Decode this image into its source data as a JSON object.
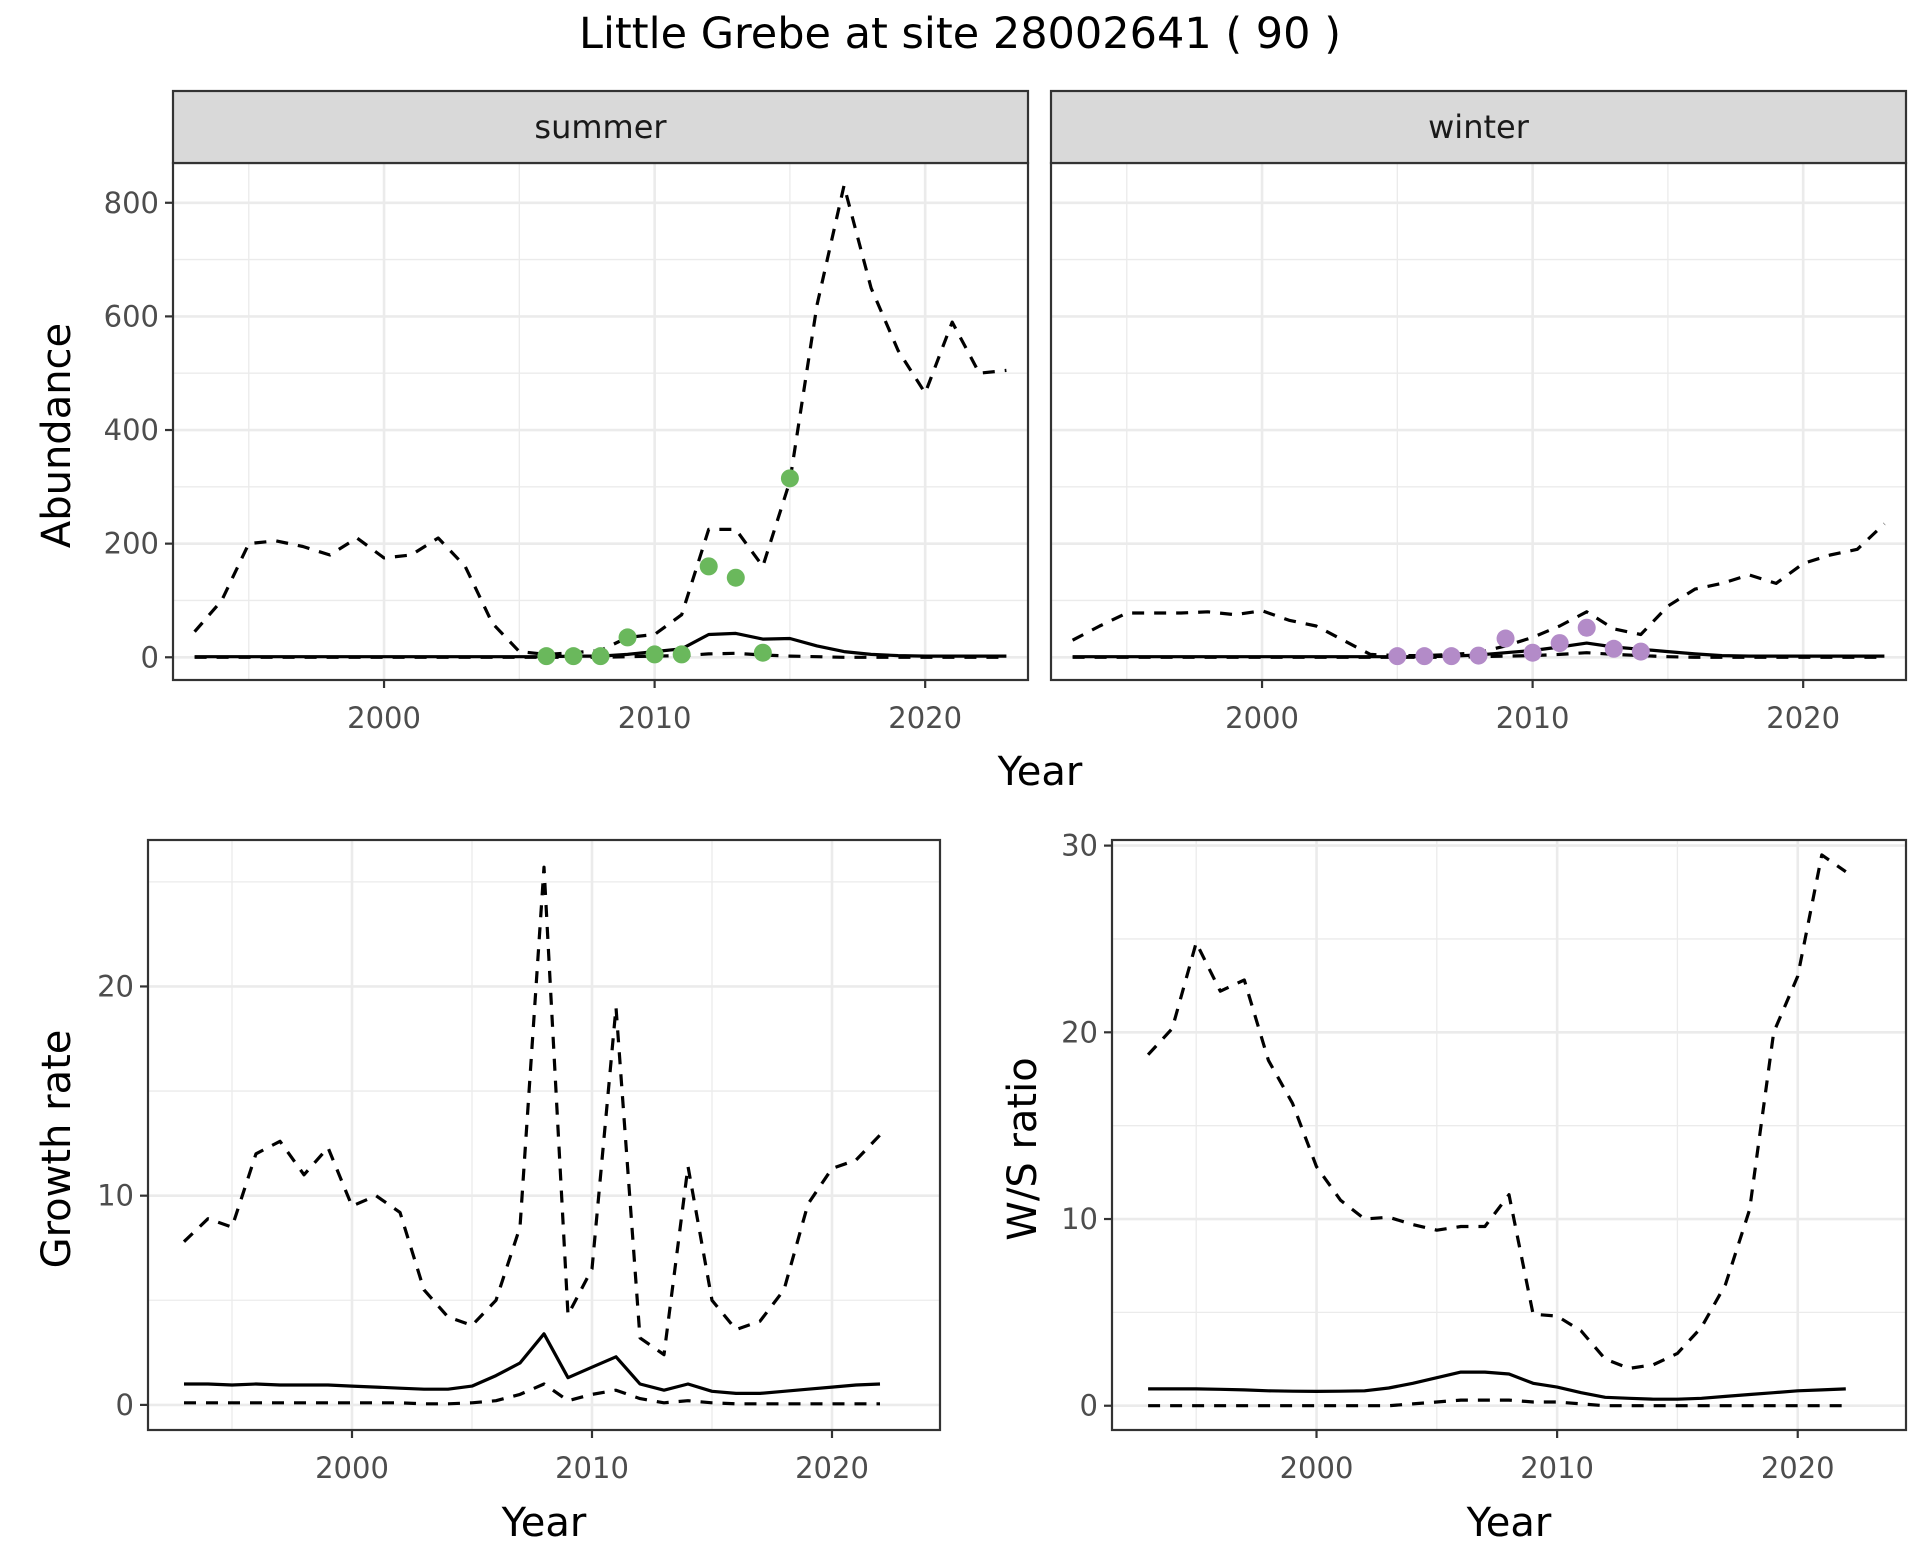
{
  "figure": {
    "title": "Little Grebe at site 28002641 ( 90 )"
  },
  "chart_data": [
    {
      "type": "line",
      "panel": "summer",
      "facet_label": "summer",
      "xlabel": "Year",
      "ylabel": "Abundance",
      "xlim": [
        1992.2,
        2023.8
      ],
      "ylim": [
        -40,
        870
      ],
      "xticks": [
        2000,
        2010,
        2020
      ],
      "yticks": [
        0,
        200,
        400,
        600,
        800
      ],
      "grid": true,
      "series": [
        {
          "style": "solid",
          "color": "#000000",
          "x": [
            1993,
            1994,
            1995,
            1996,
            1997,
            1998,
            1999,
            2000,
            2001,
            2002,
            2003,
            2004,
            2005,
            2006,
            2007,
            2008,
            2009,
            2010,
            2011,
            2012,
            2013,
            2014,
            2015,
            2016,
            2017,
            2018,
            2019,
            2020,
            2021,
            2022,
            2023
          ],
          "y": [
            1,
            1,
            1,
            1,
            1,
            1,
            1,
            1,
            1,
            1,
            1,
            1,
            1,
            1,
            2,
            2,
            5,
            10,
            15,
            40,
            42,
            32,
            33,
            20,
            10,
            5,
            3,
            2,
            2,
            2,
            2
          ]
        },
        {
          "style": "dashed",
          "color": "#000000",
          "x": [
            1993,
            1994,
            1995,
            1996,
            1997,
            1998,
            1999,
            2000,
            2001,
            2002,
            2003,
            2004,
            2005,
            2006,
            2007,
            2008,
            2009,
            2010,
            2011,
            2012,
            2013,
            2014,
            2015,
            2016,
            2017,
            2018,
            2019,
            2020,
            2021,
            2022,
            2023
          ],
          "y": [
            45,
            100,
            200,
            205,
            195,
            180,
            210,
            175,
            180,
            210,
            160,
            60,
            10,
            5,
            8,
            12,
            35,
            40,
            75,
            225,
            225,
            160,
            310,
            620,
            830,
            650,
            540,
            465,
            590,
            500,
            505
          ]
        },
        {
          "style": "dashed",
          "color": "#000000",
          "x": [
            1993,
            1994,
            1995,
            1996,
            1997,
            1998,
            1999,
            2000,
            2001,
            2002,
            2003,
            2004,
            2005,
            2006,
            2007,
            2008,
            2009,
            2010,
            2011,
            2012,
            2013,
            2014,
            2015,
            2016,
            2017,
            2018,
            2019,
            2020,
            2021,
            2022,
            2023
          ],
          "y": [
            0,
            0,
            0,
            0,
            0,
            0,
            0,
            0,
            0,
            0,
            0,
            0,
            0,
            0,
            0,
            0,
            1,
            2,
            3,
            6,
            7,
            4,
            2,
            1,
            0,
            0,
            0,
            0,
            0,
            0,
            0
          ]
        },
        {
          "style": "points",
          "color": "#6ab85c",
          "x": [
            2006,
            2007,
            2008,
            2009,
            2010,
            2011,
            2012,
            2013,
            2014,
            2015
          ],
          "y": [
            2,
            2,
            2,
            35,
            5,
            5,
            160,
            140,
            8,
            315
          ]
        }
      ]
    },
    {
      "type": "line",
      "panel": "winter",
      "facet_label": "winter",
      "xlabel": "Year",
      "ylabel": "Abundance",
      "xlim": [
        1992.2,
        2023.8
      ],
      "ylim": [
        -40,
        870
      ],
      "xticks": [
        2000,
        2010,
        2020
      ],
      "yticks": [
        0,
        200,
        400,
        600,
        800
      ],
      "grid": true,
      "series": [
        {
          "style": "solid",
          "color": "#000000",
          "x": [
            1993,
            1994,
            1995,
            1996,
            1997,
            1998,
            1999,
            2000,
            2001,
            2002,
            2003,
            2004,
            2005,
            2006,
            2007,
            2008,
            2009,
            2010,
            2011,
            2012,
            2013,
            2014,
            2015,
            2016,
            2017,
            2018,
            2019,
            2020,
            2021,
            2022,
            2023
          ],
          "y": [
            1,
            1,
            1,
            1,
            1,
            1,
            1,
            1,
            1,
            1,
            1,
            1,
            1,
            1,
            2,
            4,
            8,
            12,
            18,
            25,
            18,
            14,
            10,
            6,
            3,
            2,
            2,
            2,
            2,
            2,
            2
          ]
        },
        {
          "style": "dashed",
          "color": "#000000",
          "x": [
            1993,
            1994,
            1995,
            1996,
            1997,
            1998,
            1999,
            2000,
            2001,
            2002,
            2003,
            2004,
            2005,
            2006,
            2007,
            2008,
            2009,
            2010,
            2011,
            2012,
            2013,
            2014,
            2015,
            2016,
            2017,
            2018,
            2019,
            2020,
            2021,
            2022,
            2023
          ],
          "y": [
            30,
            55,
            78,
            78,
            78,
            80,
            75,
            82,
            65,
            55,
            30,
            5,
            3,
            3,
            5,
            8,
            20,
            35,
            55,
            80,
            50,
            40,
            90,
            120,
            130,
            145,
            130,
            165,
            180,
            190,
            235
          ]
        },
        {
          "style": "dashed",
          "color": "#000000",
          "x": [
            1993,
            1994,
            1995,
            1996,
            1997,
            1998,
            1999,
            2000,
            2001,
            2002,
            2003,
            2004,
            2005,
            2006,
            2007,
            2008,
            2009,
            2010,
            2011,
            2012,
            2013,
            2014,
            2015,
            2016,
            2017,
            2018,
            2019,
            2020,
            2021,
            2022,
            2023
          ],
          "y": [
            0,
            0,
            0,
            0,
            0,
            0,
            0,
            0,
            0,
            0,
            0,
            0,
            0,
            0,
            0,
            1,
            2,
            3,
            5,
            8,
            5,
            3,
            1,
            0,
            0,
            0,
            0,
            0,
            0,
            0,
            0
          ]
        },
        {
          "style": "points",
          "color": "#b38bc8",
          "x": [
            2005,
            2006,
            2007,
            2008,
            2009,
            2010,
            2011,
            2012,
            2013,
            2014
          ],
          "y": [
            2,
            2,
            2,
            3,
            33,
            8,
            25,
            52,
            15,
            10
          ]
        }
      ]
    },
    {
      "type": "line",
      "panel": "growth",
      "xlabel": "Year",
      "ylabel": "Growth rate",
      "xlim": [
        1991.5,
        2024.5
      ],
      "ylim": [
        -1.2,
        27
      ],
      "xticks": [
        2000,
        2010,
        2020
      ],
      "yticks": [
        0,
        10,
        20
      ],
      "grid": true,
      "series": [
        {
          "style": "solid",
          "color": "#000000",
          "x": [
            1993,
            1994,
            1995,
            1996,
            1997,
            1998,
            1999,
            2000,
            2001,
            2002,
            2003,
            2004,
            2005,
            2006,
            2007,
            2008,
            2009,
            2010,
            2011,
            2012,
            2013,
            2014,
            2015,
            2016,
            2017,
            2018,
            2019,
            2020,
            2021,
            2022
          ],
          "y": [
            1.0,
            1.0,
            0.95,
            1.0,
            0.95,
            0.95,
            0.95,
            0.9,
            0.85,
            0.8,
            0.75,
            0.75,
            0.9,
            1.4,
            2.0,
            3.4,
            1.3,
            1.8,
            2.3,
            1.0,
            0.7,
            1.0,
            0.65,
            0.55,
            0.55,
            0.65,
            0.75,
            0.85,
            0.95,
            1.0
          ]
        },
        {
          "style": "dashed",
          "color": "#000000",
          "x": [
            1993,
            1994,
            1995,
            1996,
            1997,
            1998,
            1999,
            2000,
            2001,
            2002,
            2003,
            2004,
            2005,
            2006,
            2007,
            2008,
            2009,
            2010,
            2011,
            2012,
            2013,
            2014,
            2015,
            2016,
            2017,
            2018,
            2019,
            2020,
            2021,
            2022
          ],
          "y": [
            7.8,
            8.9,
            8.5,
            12.0,
            12.6,
            11.0,
            12.3,
            9.5,
            10.0,
            9.2,
            5.5,
            4.2,
            3.8,
            5.0,
            8.5,
            25.7,
            4.3,
            6.5,
            19.0,
            3.2,
            2.4,
            11.4,
            5.0,
            3.6,
            4.0,
            5.5,
            9.6,
            11.3,
            11.7,
            12.9
          ]
        },
        {
          "style": "dashed",
          "color": "#000000",
          "x": [
            1993,
            1994,
            1995,
            1996,
            1997,
            1998,
            1999,
            2000,
            2001,
            2002,
            2003,
            2004,
            2005,
            2006,
            2007,
            2008,
            2009,
            2010,
            2011,
            2012,
            2013,
            2014,
            2015,
            2016,
            2017,
            2018,
            2019,
            2020,
            2021,
            2022
          ],
          "y": [
            0.1,
            0.1,
            0.1,
            0.1,
            0.1,
            0.1,
            0.1,
            0.1,
            0.1,
            0.1,
            0.05,
            0.05,
            0.1,
            0.2,
            0.5,
            1.0,
            0.2,
            0.5,
            0.7,
            0.3,
            0.1,
            0.2,
            0.1,
            0.05,
            0.05,
            0.05,
            0.05,
            0.05,
            0.05,
            0.05
          ]
        }
      ]
    },
    {
      "type": "line",
      "panel": "ratio",
      "xlabel": "Year",
      "ylabel": "W/S ratio",
      "xlim": [
        1991.5,
        2024.5
      ],
      "ylim": [
        -1.3,
        30.3
      ],
      "xticks": [
        2000,
        2010,
        2020
      ],
      "yticks": [
        0,
        10,
        20,
        30
      ],
      "grid": true,
      "series": [
        {
          "style": "solid",
          "color": "#000000",
          "x": [
            1993,
            1994,
            1995,
            1996,
            1997,
            1998,
            1999,
            2000,
            2001,
            2002,
            2003,
            2004,
            2005,
            2006,
            2007,
            2008,
            2009,
            2010,
            2011,
            2012,
            2013,
            2014,
            2015,
            2016,
            2017,
            2018,
            2019,
            2020,
            2021,
            2022
          ],
          "y": [
            0.9,
            0.9,
            0.9,
            0.88,
            0.85,
            0.8,
            0.78,
            0.77,
            0.78,
            0.8,
            0.95,
            1.2,
            1.5,
            1.8,
            1.8,
            1.7,
            1.2,
            1.0,
            0.7,
            0.45,
            0.4,
            0.35,
            0.35,
            0.4,
            0.5,
            0.6,
            0.7,
            0.8,
            0.85,
            0.9
          ]
        },
        {
          "style": "dashed",
          "color": "#000000",
          "x": [
            1993,
            1994,
            1995,
            1996,
            1997,
            1998,
            1999,
            2000,
            2001,
            2002,
            2003,
            2004,
            2005,
            2006,
            2007,
            2008,
            2009,
            2010,
            2011,
            2012,
            2013,
            2014,
            2015,
            2016,
            2017,
            2018,
            2019,
            2020,
            2021,
            2022
          ],
          "y": [
            18.8,
            20.2,
            24.8,
            22.2,
            22.8,
            18.5,
            16.2,
            12.8,
            11.0,
            10.0,
            10.1,
            9.7,
            9.4,
            9.6,
            9.6,
            11.3,
            4.9,
            4.8,
            4.0,
            2.5,
            2.0,
            2.2,
            2.8,
            4.2,
            6.5,
            10.5,
            20.0,
            23.0,
            29.5,
            28.6
          ]
        },
        {
          "style": "dashed",
          "color": "#000000",
          "x": [
            1993,
            1994,
            1995,
            1996,
            1997,
            1998,
            1999,
            2000,
            2001,
            2002,
            2003,
            2004,
            2005,
            2006,
            2007,
            2008,
            2009,
            2010,
            2011,
            2012,
            2013,
            2014,
            2015,
            2016,
            2017,
            2018,
            2019,
            2020,
            2021,
            2022
          ],
          "y": [
            0,
            0,
            0,
            0,
            0,
            0,
            0,
            0,
            0,
            0,
            0,
            0.1,
            0.2,
            0.3,
            0.3,
            0.3,
            0.2,
            0.2,
            0.1,
            0,
            0,
            0,
            0,
            0,
            0,
            0,
            0,
            0,
            0,
            0
          ]
        }
      ]
    }
  ]
}
